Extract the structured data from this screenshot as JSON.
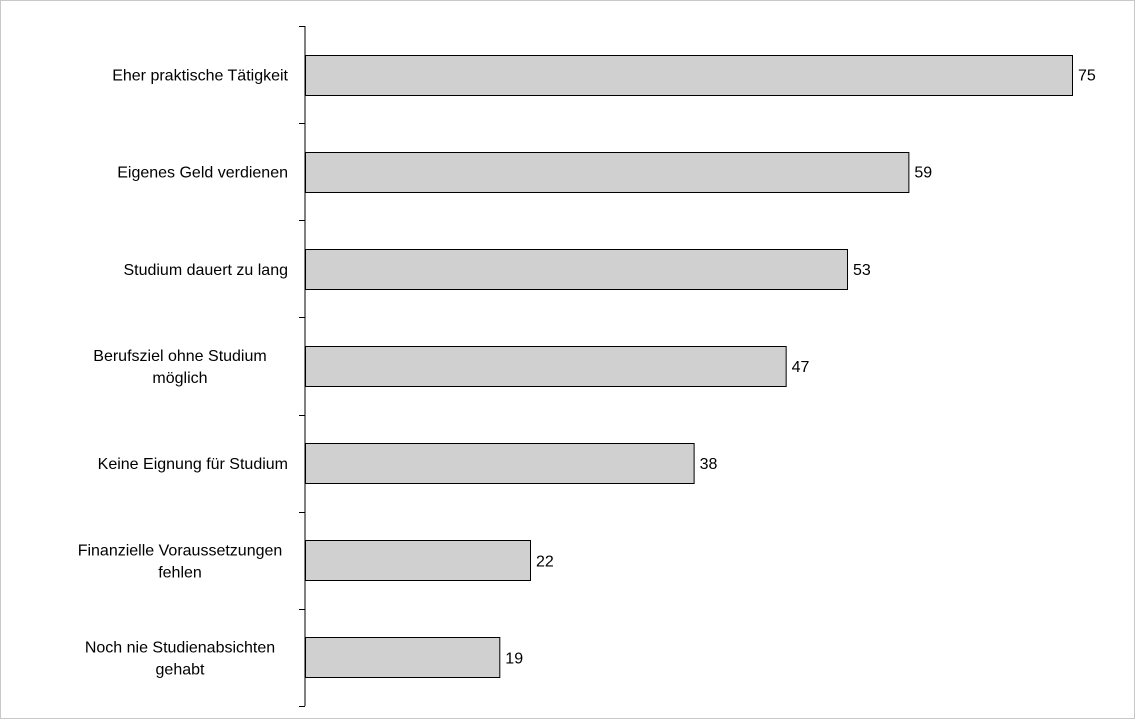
{
  "chart_data": {
    "type": "bar",
    "orientation": "horizontal",
    "categories": [
      "Eher praktische Tätigkeit",
      "Eigenes Geld verdienen",
      "Studium dauert zu lang",
      "Berufsziel ohne Studium möglich",
      "Keine Eignung für Studium",
      "Finanzielle Voraussetzungen fehlen",
      "Noch nie Studienabsichten gehabt"
    ],
    "category_lines": [
      [
        "Eher praktische Tätigkeit"
      ],
      [
        "Eigenes Geld verdienen"
      ],
      [
        "Studium dauert zu lang"
      ],
      [
        "Berufsziel ohne Studium",
        "möglich"
      ],
      [
        "Keine Eignung für Studium"
      ],
      [
        "Finanzielle Voraussetzungen",
        "fehlen"
      ],
      [
        "Noch nie Studienabsichten",
        "gehabt"
      ]
    ],
    "values": [
      75,
      59,
      53,
      47,
      38,
      22,
      19
    ],
    "data_labels": [
      "75",
      "59",
      "53",
      "47",
      "38",
      "22",
      "19"
    ],
    "title": "",
    "xlabel": "",
    "ylabel": "",
    "xlim": [
      0,
      80
    ],
    "grid": false,
    "legend": "none",
    "colors": {
      "bar_fill": "#d0d0d0",
      "bar_stroke": "#000000",
      "axis": "#000000",
      "frame": "#c8c8c8"
    }
  }
}
